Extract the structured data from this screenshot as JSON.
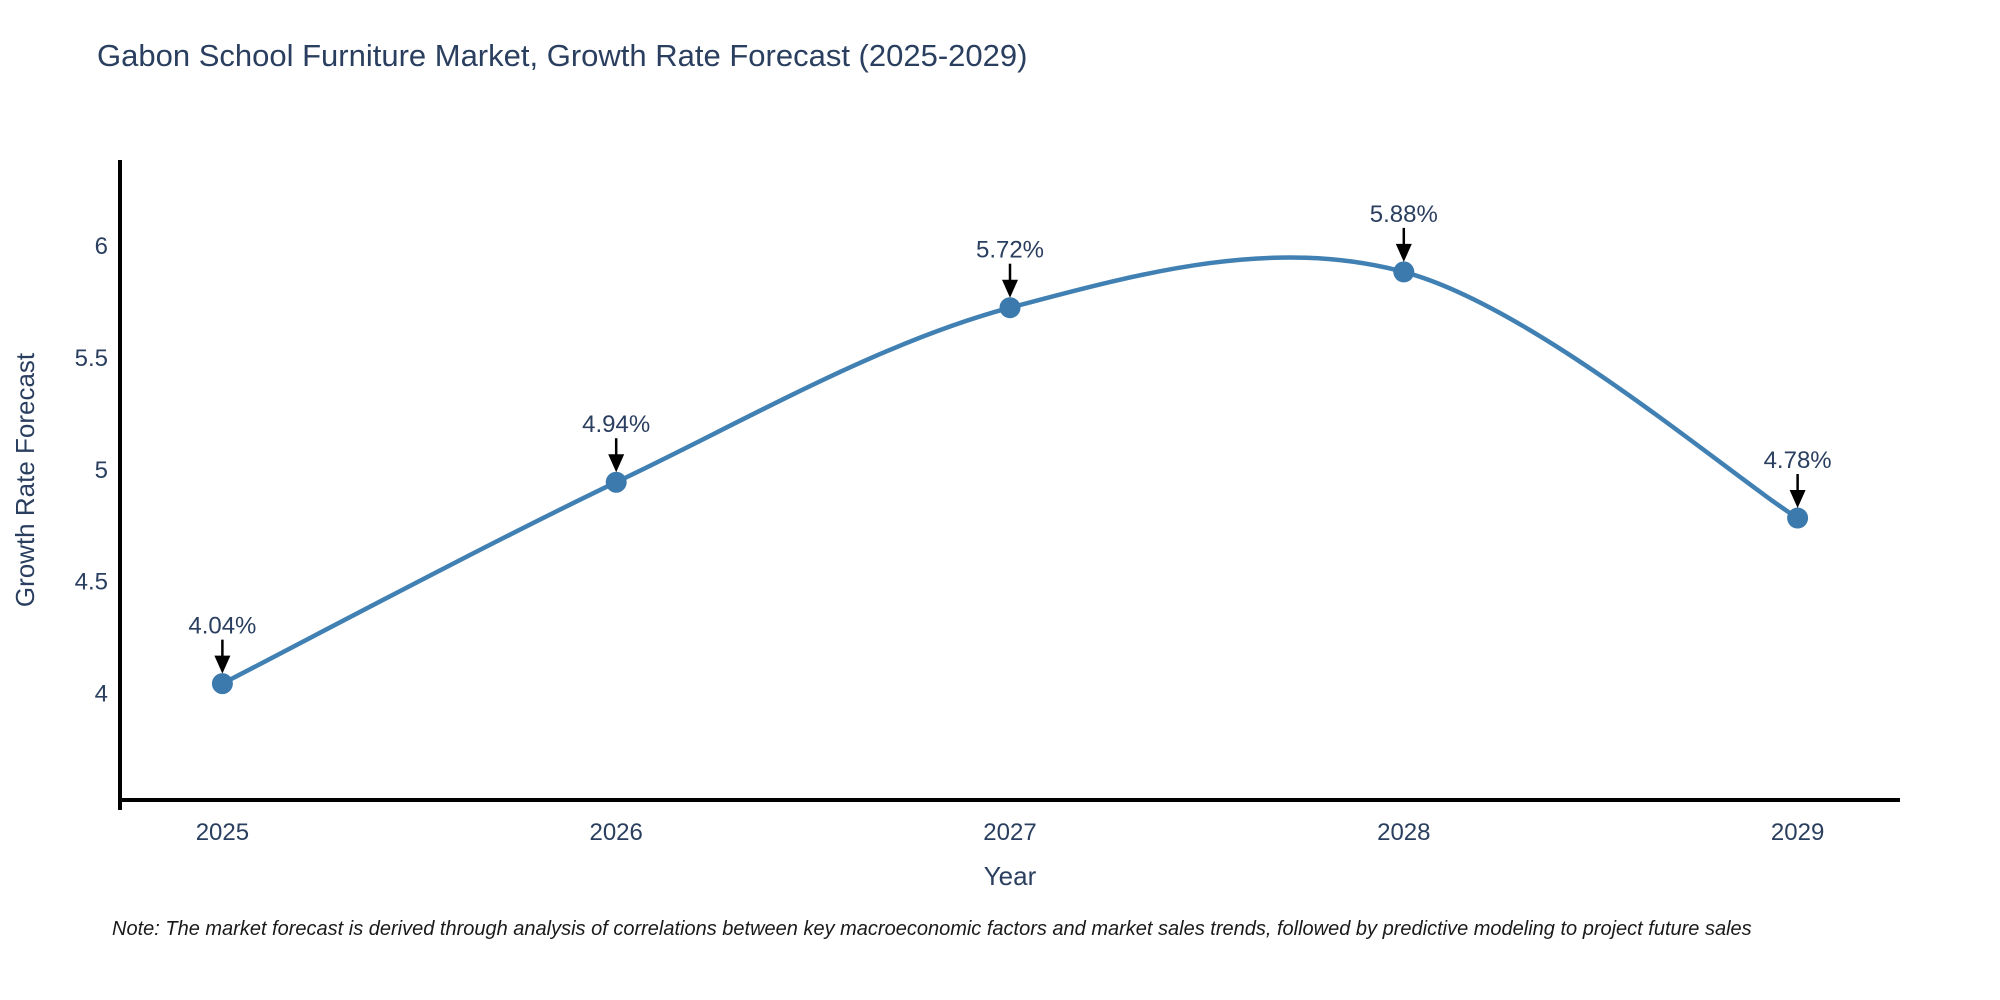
{
  "page": {
    "note": "Note: The market forecast is derived through analysis of correlations between key macroeconomic factors and market sales trends, followed by predictive modeling to project future sales"
  },
  "chart_data": {
    "type": "line",
    "title": "Gabon School Furniture Market, Growth Rate Forecast (2025-2029)",
    "x": [
      2025,
      2026,
      2027,
      2028,
      2029
    ],
    "xticks": [
      "2025",
      "2026",
      "2027",
      "2028",
      "2029"
    ],
    "yticks": [
      4,
      4.5,
      5,
      5.5,
      6
    ],
    "series": [
      {
        "name": "Growth Rate Forecast",
        "values": [
          4.04,
          4.94,
          5.72,
          5.88,
          4.78
        ]
      }
    ],
    "point_labels": [
      "4.04%",
      "4.94%",
      "5.72%",
      "5.88%",
      "4.78%"
    ],
    "xlabel": "Year",
    "ylabel": "Growth Rate Forecast",
    "xlim": [
      2024.74,
      2029.26
    ],
    "ylim": [
      3.52,
      6.38
    ],
    "grid": false,
    "legend_position": "none",
    "line_shape": "spline",
    "colors": {
      "line": "#4180b3",
      "marker": "#3c7aad",
      "axis": "#000000",
      "text": "#2a3f5f",
      "annotation_arrow": "#000000",
      "background": "#ffffff"
    }
  }
}
